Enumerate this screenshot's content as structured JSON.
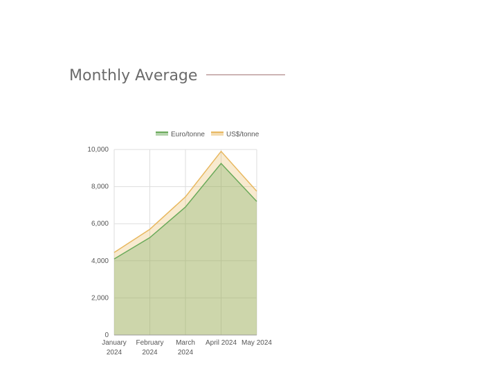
{
  "chart_data": {
    "type": "area",
    "title": "Monthly Average",
    "categories": [
      "January 2024",
      "February 2024",
      "March 2024",
      "April 2024",
      "May 2024"
    ],
    "series": [
      {
        "name": "Euro/tonne",
        "color": "#6aaa5a",
        "values": [
          4100,
          5250,
          6900,
          9250,
          7200
        ]
      },
      {
        "name": "US$/tonne",
        "color": "#e8b860",
        "values": [
          4450,
          5700,
          7450,
          9900,
          7750
        ]
      }
    ],
    "ylim": [
      0,
      10000
    ],
    "yticks": [
      0,
      {
        "value": 2000,
        "label": "2,000"
      },
      {
        "value": 4000,
        "label": "4,000"
      },
      {
        "value": 6000,
        "label": "6,000"
      },
      {
        "value": 8000,
        "label": "8,000"
      },
      {
        "value": 10000,
        "label": "10,000"
      }
    ],
    "grid": true,
    "legend": "top"
  }
}
